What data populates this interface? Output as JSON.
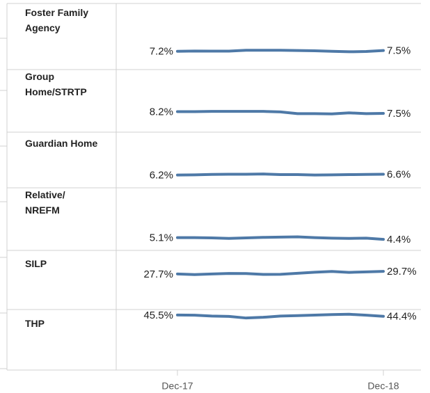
{
  "chart_data": {
    "type": "line",
    "categories": [
      "Dec-17",
      null,
      null,
      null,
      null,
      null,
      null,
      null,
      null,
      null,
      null,
      null,
      "Dec-18"
    ],
    "series": [
      {
        "name": "Foster Family\nAgency",
        "color": "#4e79a7",
        "ylim": [
          0,
          26
        ],
        "values": [
          7.2,
          7.3,
          7.25,
          7.25,
          7.6,
          7.6,
          7.6,
          7.5,
          7.4,
          7.2,
          7.0,
          7.1,
          7.5
        ],
        "value_labels": [
          "7.2%",
          null,
          null,
          null,
          null,
          null,
          null,
          null,
          null,
          null,
          null,
          null,
          "7.5%"
        ]
      },
      {
        "name": "Group\nHome/STRTP",
        "color": "#4e79a7",
        "ylim": [
          0,
          25
        ],
        "values": [
          8.2,
          8.2,
          8.3,
          8.3,
          8.3,
          8.3,
          8.1,
          7.4,
          7.4,
          7.3,
          7.7,
          7.4,
          7.5
        ],
        "value_labels": [
          "8.2%",
          null,
          null,
          null,
          null,
          null,
          null,
          null,
          null,
          null,
          null,
          null,
          "7.5%"
        ]
      },
      {
        "name": "Guardian Home",
        "color": "#4e79a7",
        "ylim": [
          0,
          27
        ],
        "values": [
          6.2,
          6.3,
          6.5,
          6.6,
          6.6,
          6.7,
          6.4,
          6.4,
          6.2,
          6.3,
          6.4,
          6.5,
          6.6
        ],
        "value_labels": [
          "6.2%",
          null,
          null,
          null,
          null,
          null,
          null,
          null,
          null,
          null,
          null,
          null,
          "6.6%"
        ]
      },
      {
        "name": "Relative/\nNREFM",
        "color": "#4e79a7",
        "ylim": [
          0,
          25
        ],
        "values": [
          5.1,
          5.1,
          5.0,
          4.8,
          5.0,
          5.2,
          5.3,
          5.4,
          5.1,
          4.9,
          4.8,
          4.9,
          4.4
        ],
        "value_labels": [
          "5.1%",
          null,
          null,
          null,
          null,
          null,
          null,
          null,
          null,
          null,
          null,
          null,
          "4.4%"
        ]
      },
      {
        "name": "SILP",
        "color": "#4e79a7",
        "ylim": [
          0,
          46
        ],
        "values": [
          27.7,
          27.2,
          27.7,
          28.1,
          28.0,
          27.3,
          27.4,
          28.2,
          29.0,
          29.6,
          28.9,
          29.3,
          29.7
        ],
        "value_labels": [
          "27.7%",
          null,
          null,
          null,
          null,
          null,
          null,
          null,
          null,
          null,
          null,
          null,
          "29.7%"
        ]
      },
      {
        "name": "THP",
        "color": "#4e79a7",
        "ylim": [
          0,
          50
        ],
        "values": [
          45.5,
          45.3,
          44.6,
          44.3,
          43.0,
          43.6,
          44.6,
          45.0,
          45.4,
          45.8,
          46.1,
          45.3,
          44.4
        ],
        "value_labels": [
          "45.5%",
          null,
          null,
          null,
          null,
          null,
          null,
          null,
          null,
          null,
          null,
          null,
          "44.4%"
        ]
      }
    ]
  }
}
